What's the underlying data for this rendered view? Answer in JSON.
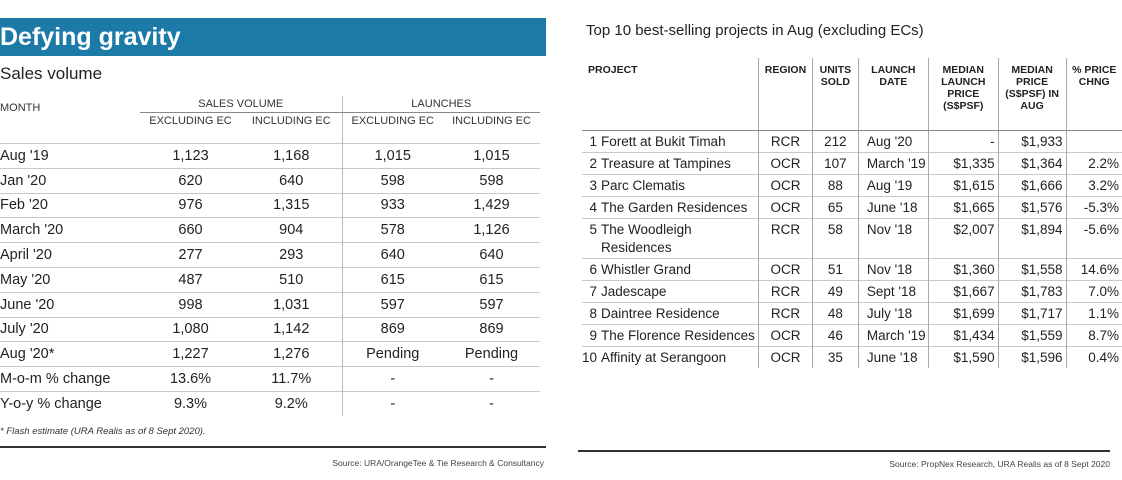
{
  "left": {
    "title": "Defying gravity",
    "subtitle": "Sales volume",
    "headers": {
      "month": "MONTH",
      "sales_volume": "SALES VOLUME",
      "launches": "LAUNCHES",
      "excl_ec_1": "EXCLUDING EC",
      "incl_ec_1": "INCLUDING EC",
      "excl_ec_2": "EXCLUDING EC",
      "incl_ec_2": "INCLUDING EC"
    },
    "rows": [
      {
        "month": "Aug '19",
        "sv_ex": "1,123",
        "sv_in": "1,168",
        "l_ex": "1,015",
        "l_in": "1,015"
      },
      {
        "month": "Jan '20",
        "sv_ex": "620",
        "sv_in": "640",
        "l_ex": "598",
        "l_in": "598"
      },
      {
        "month": "Feb '20",
        "sv_ex": "976",
        "sv_in": "1,315",
        "l_ex": "933",
        "l_in": "1,429"
      },
      {
        "month": "March '20",
        "sv_ex": "660",
        "sv_in": "904",
        "l_ex": "578",
        "l_in": "1,126"
      },
      {
        "month": "April '20",
        "sv_ex": "277",
        "sv_in": "293",
        "l_ex": "640",
        "l_in": "640"
      },
      {
        "month": "May '20",
        "sv_ex": "487",
        "sv_in": "510",
        "l_ex": "615",
        "l_in": "615"
      },
      {
        "month": "June '20",
        "sv_ex": "998",
        "sv_in": "1,031",
        "l_ex": "597",
        "l_in": "597"
      },
      {
        "month": "July '20",
        "sv_ex": "1,080",
        "sv_in": "1,142",
        "l_ex": "869",
        "l_in": "869"
      },
      {
        "month": "Aug '20*",
        "sv_ex": "1,227",
        "sv_in": "1,276",
        "l_ex": "Pending",
        "l_in": "Pending"
      },
      {
        "month": "M-o-m % change",
        "sv_ex": "13.6%",
        "sv_in": "11.7%",
        "l_ex": "-",
        "l_in": "-"
      },
      {
        "month": "Y-o-y % change",
        "sv_ex": "9.3%",
        "sv_in": "9.2%",
        "l_ex": "-",
        "l_in": "-"
      }
    ],
    "footnote": "* Flash estimate (URA Realis as of 8 Sept 2020).",
    "source": "Source: URA/OrangeTee & Tie Research & Consultancy"
  },
  "right": {
    "title": "Top 10 best-selling projects in Aug (excluding ECs)",
    "headers": {
      "project": "PROJECT",
      "region": "REGION",
      "units": "UNITS SOLD",
      "launch_date": "LAUNCH DATE",
      "median_launch": "MEDIAN LAUNCH PRICE (S$PSF)",
      "median_aug": "MEDIAN PRICE (S$PSF) IN AUG",
      "pct": "% PRICE CHNG"
    },
    "rows": [
      {
        "rank": "1",
        "name": "Forett at Bukit Timah",
        "region": "RCR",
        "units": "212",
        "date": "Aug '20",
        "launch_price": "-",
        "aug_price": "$1,933",
        "chg": ""
      },
      {
        "rank": "2",
        "name": "Treasure at Tampines",
        "region": "OCR",
        "units": "107",
        "date": "March '19",
        "launch_price": "$1,335",
        "aug_price": "$1,364",
        "chg": "2.2%"
      },
      {
        "rank": "3",
        "name": "Parc Clematis",
        "region": "OCR",
        "units": "88",
        "date": "Aug '19",
        "launch_price": "$1,615",
        "aug_price": "$1,666",
        "chg": "3.2%"
      },
      {
        "rank": "4",
        "name": "The Garden Residences",
        "region": "OCR",
        "units": "65",
        "date": "June '18",
        "launch_price": "$1,665",
        "aug_price": "$1,576",
        "chg": "-5.3%"
      },
      {
        "rank": "5",
        "name": "The Woodleigh Residences",
        "region": "RCR",
        "units": "58",
        "date": "Nov '18",
        "launch_price": "$2,007",
        "aug_price": "$1,894",
        "chg": "-5.6%"
      },
      {
        "rank": "6",
        "name": "Whistler Grand",
        "region": "OCR",
        "units": "51",
        "date": "Nov '18",
        "launch_price": "$1,360",
        "aug_price": "$1,558",
        "chg": "14.6%"
      },
      {
        "rank": "7",
        "name": "Jadescape",
        "region": "RCR",
        "units": "49",
        "date": "Sept '18",
        "launch_price": "$1,667",
        "aug_price": "$1,783",
        "chg": "7.0%"
      },
      {
        "rank": "8",
        "name": "Daintree Residence",
        "region": "RCR",
        "units": "48",
        "date": "July '18",
        "launch_price": "$1,699",
        "aug_price": "$1,717",
        "chg": "1.1%"
      },
      {
        "rank": "9",
        "name": "The Florence Residences",
        "region": "OCR",
        "units": "46",
        "date": "March '19",
        "launch_price": "$1,434",
        "aug_price": "$1,559",
        "chg": "8.7%"
      },
      {
        "rank": "10",
        "name": "Affinity at Serangoon",
        "region": "OCR",
        "units": "35",
        "date": "June '18",
        "launch_price": "$1,590",
        "aug_price": "$1,596",
        "chg": "0.4%"
      }
    ],
    "source": "Source: PropNex Research, URA Realis as of 8 Sept 2020"
  }
}
